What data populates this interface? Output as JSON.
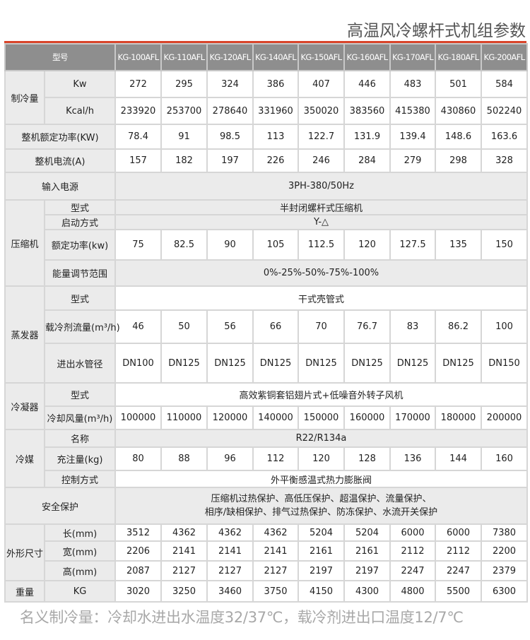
{
  "title": "高温风冷螺杆式机组参数",
  "accent_color": "#d9452b",
  "header": {
    "label": "型号",
    "models": [
      "KG-100AFL",
      "KG-110AFL",
      "KG-120AFL",
      "KG-140AFL",
      "KG-150AFL",
      "KG-160AFL",
      "KG-170AFL",
      "KG-180AFL",
      "KG-200AFL"
    ]
  },
  "sections": [
    {
      "group": "制冷量",
      "rows": [
        {
          "label": "Kw",
          "values": [
            "272",
            "295",
            "324",
            "386",
            "407",
            "446",
            "483",
            "501",
            "584"
          ]
        },
        {
          "label": "Kcal/h",
          "values": [
            "233920",
            "253700",
            "278640",
            "331960",
            "350020",
            "383560",
            "415380",
            "430860",
            "502240"
          ]
        }
      ]
    },
    {
      "group": null,
      "rows": [
        {
          "label": "整机额定功率(KW)",
          "values": [
            "78.4",
            "91",
            "98.5",
            "113",
            "122.7",
            "131.9",
            "139.4",
            "148.6",
            "163.6"
          ]
        }
      ]
    },
    {
      "group": null,
      "rows": [
        {
          "label": "整机电流(A)",
          "values": [
            "157",
            "182",
            "197",
            "226",
            "246",
            "284",
            "279",
            "298",
            "328"
          ]
        }
      ]
    },
    {
      "group": null,
      "rows": [
        {
          "label": "输入电源",
          "merged": "3PH-380/50Hz",
          "shaded": true
        }
      ]
    },
    {
      "group": "压缩机",
      "rows": [
        {
          "label": "型式",
          "merged": "半封闭螺杆式压缩机",
          "shaded": true
        },
        {
          "label": "启动方式",
          "merged": "Y-△",
          "shaded": true
        },
        {
          "label": "额定功率(kw)",
          "values": [
            "75",
            "82.5",
            "90",
            "105",
            "112.5",
            "120",
            "127.5",
            "135",
            "150"
          ]
        },
        {
          "label": "能量调节范围",
          "merged": "0%-25%-50%-75%-100%",
          "shaded": true
        }
      ]
    },
    {
      "group": "蒸发器",
      "rows": [
        {
          "label": "型式",
          "merged": "干式壳管式",
          "shaded": false
        },
        {
          "label": "载冷剂流量(m³/h)",
          "values": [
            "46",
            "50",
            "56",
            "66",
            "70",
            "76.7",
            "83",
            "86.2",
            "100"
          ]
        },
        {
          "label": "进出水管径",
          "values": [
            "DN100",
            "DN125",
            "DN125",
            "DN125",
            "DN125",
            "DN125",
            "DN125",
            "DN125",
            "DN150"
          ]
        }
      ]
    },
    {
      "group": "冷凝器",
      "rows": [
        {
          "label": "型式",
          "merged": "高效紫铜套铝翅片式+低噪音外转子风机",
          "shaded": false
        },
        {
          "label": "冷却风量(m³/h)",
          "values": [
            "100000",
            "110000",
            "120000",
            "140000",
            "150000",
            "160000",
            "170000",
            "180000",
            "200000"
          ]
        }
      ]
    },
    {
      "group": "冷媒",
      "rows": [
        {
          "label": "名称",
          "merged": "R22/R134a",
          "shaded": true
        },
        {
          "label": "充注量(kg)",
          "values": [
            "80",
            "88",
            "96",
            "112",
            "120",
            "128",
            "136",
            "144",
            "160"
          ]
        },
        {
          "label": "控制方式",
          "merged": "外平衡感温式热力膨胀阀",
          "shaded": false
        }
      ]
    },
    {
      "group": null,
      "rows": [
        {
          "label": "安全保护",
          "merged_lines": [
            "压缩机过热保护、高低压保护、超温保护、流量保护、",
            "相序/缺相保护、排气过热保护、防冻保护、水流开关保护"
          ],
          "shaded": true
        }
      ]
    },
    {
      "group": "外形尺寸",
      "rows": [
        {
          "label": "长(mm)",
          "values": [
            "3512",
            "4362",
            "4362",
            "4362",
            "5204",
            "5204",
            "6000",
            "6000",
            "7380"
          ]
        },
        {
          "label": "宽(mm)",
          "values": [
            "2206",
            "2141",
            "2141",
            "2141",
            "2161",
            "2161",
            "2112",
            "2112",
            "2200"
          ]
        },
        {
          "label": "高(mm)",
          "values": [
            "2087",
            "2127",
            "2127",
            "2127",
            "2197",
            "2197",
            "2247",
            "2247",
            "2379"
          ]
        }
      ]
    },
    {
      "group": "重量",
      "rows": [
        {
          "label": "KG",
          "values": [
            "3020",
            "3250",
            "3460",
            "3750",
            "4150",
            "4300",
            "4800",
            "5500",
            "6300"
          ]
        }
      ]
    }
  ],
  "footer": "名义制冷量：冷却水进出水温度32/37℃，载冷剂进出口温度12/7℃"
}
